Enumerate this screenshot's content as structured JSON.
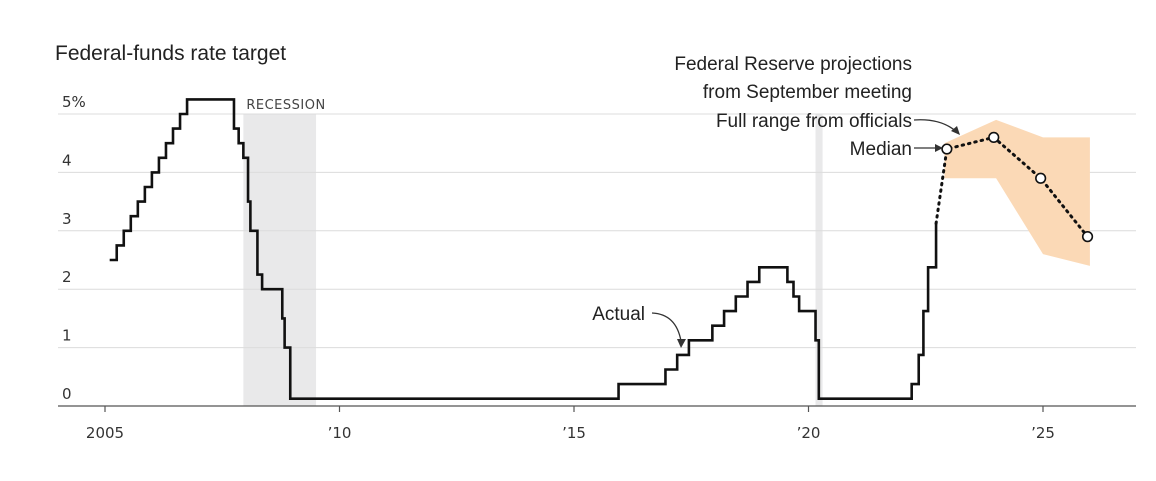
{
  "chart_data": {
    "type": "line",
    "title": "Federal-funds rate target",
    "ylabel": "",
    "xlabel": "",
    "xlim": [
      2004.0,
      2027.0
    ],
    "ylim": [
      0,
      5.25
    ],
    "y_ticks": [
      {
        "value": 5,
        "label": "5%"
      },
      {
        "value": 4,
        "label": "4"
      },
      {
        "value": 3,
        "label": "3"
      },
      {
        "value": 2,
        "label": "2"
      },
      {
        "value": 1,
        "label": "1"
      },
      {
        "value": 0,
        "label": "0"
      }
    ],
    "x_ticks": [
      {
        "value": 2005,
        "label": "2005"
      },
      {
        "value": 2010,
        "label": "’10"
      },
      {
        "value": 2015,
        "label": "’15"
      },
      {
        "value": 2020,
        "label": "’20"
      },
      {
        "value": 2025,
        "label": "’25"
      }
    ],
    "grid": true,
    "recession_bands": [
      {
        "start": 2007.95,
        "end": 2009.5,
        "label": "RECESSION"
      },
      {
        "start": 2020.15,
        "end": 2020.3,
        "label": ""
      }
    ],
    "actual": {
      "name": "Actual",
      "points": [
        [
          2005.1,
          2.5
        ],
        [
          2005.25,
          2.75
        ],
        [
          2005.4,
          3.0
        ],
        [
          2005.55,
          3.25
        ],
        [
          2005.7,
          3.5
        ],
        [
          2005.85,
          3.75
        ],
        [
          2006.0,
          4.0
        ],
        [
          2006.15,
          4.25
        ],
        [
          2006.3,
          4.5
        ],
        [
          2006.45,
          4.75
        ],
        [
          2006.6,
          5.0
        ],
        [
          2006.75,
          5.25
        ],
        [
          2007.6,
          5.25
        ],
        [
          2007.75,
          4.75
        ],
        [
          2007.85,
          4.5
        ],
        [
          2007.95,
          4.25
        ],
        [
          2008.05,
          3.5
        ],
        [
          2008.1,
          3.0
        ],
        [
          2008.25,
          2.25
        ],
        [
          2008.35,
          2.0
        ],
        [
          2008.78,
          1.5
        ],
        [
          2008.83,
          1.0
        ],
        [
          2008.95,
          0.125
        ],
        [
          2015.95,
          0.375
        ],
        [
          2016.95,
          0.625
        ],
        [
          2017.2,
          0.875
        ],
        [
          2017.45,
          1.125
        ],
        [
          2017.95,
          1.375
        ],
        [
          2018.2,
          1.625
        ],
        [
          2018.45,
          1.875
        ],
        [
          2018.7,
          2.125
        ],
        [
          2018.95,
          2.375
        ],
        [
          2019.55,
          2.125
        ],
        [
          2019.68,
          1.875
        ],
        [
          2019.8,
          1.625
        ],
        [
          2020.15,
          1.125
        ],
        [
          2020.22,
          0.125
        ],
        [
          2022.2,
          0.375
        ],
        [
          2022.35,
          0.875
        ],
        [
          2022.45,
          1.625
        ],
        [
          2022.55,
          2.375
        ],
        [
          2022.72,
          3.125
        ]
      ]
    },
    "median_projection": {
      "name": "Median",
      "points": [
        [
          2022.72,
          3.125
        ],
        [
          2022.95,
          4.4
        ],
        [
          2023.95,
          4.6
        ],
        [
          2024.95,
          3.9
        ],
        [
          2025.95,
          2.9
        ]
      ]
    },
    "projection_range": {
      "name": "Full range from officials",
      "upper": [
        [
          2022.9,
          4.5
        ],
        [
          2024.0,
          4.9
        ],
        [
          2025.0,
          4.6
        ],
        [
          2026.0,
          4.6
        ]
      ],
      "lower": [
        [
          2022.9,
          3.9
        ],
        [
          2024.0,
          3.9
        ],
        [
          2025.0,
          2.6
        ],
        [
          2026.0,
          2.4
        ]
      ]
    },
    "annotations": {
      "header_line1": "Federal Reserve projections",
      "header_line2": "from September meeting",
      "range_label": "Full range from officials",
      "median_label": "Median",
      "actual_label": "Actual"
    },
    "colors": {
      "line": "#111111",
      "range_fill": "#fbd9b6",
      "recession_fill": "#e9e9ea",
      "grid": "#dcdcdc"
    }
  }
}
